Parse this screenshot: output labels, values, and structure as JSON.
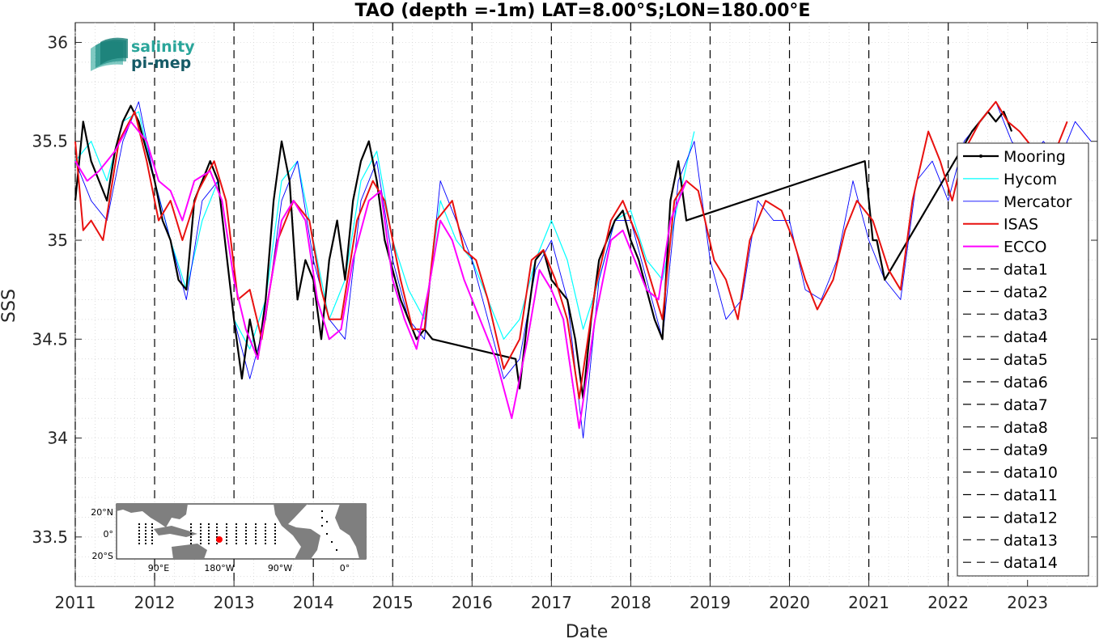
{
  "chart_data": {
    "type": "line",
    "title": "TAO (depth =-1m) LAT=8.00°S;LON=180.00°E",
    "xlabel": "Date",
    "ylabel": "SSS",
    "xlim": [
      2011.0,
      2023.88
    ],
    "ylim": [
      33.25,
      36.1
    ],
    "x_ticks": [
      "2011",
      "2012",
      "2013",
      "2014",
      "2015",
      "2016",
      "2017",
      "2018",
      "2019",
      "2020",
      "2021",
      "2022",
      "2023"
    ],
    "y_ticks": [
      "33.5",
      "34",
      "34.5",
      "35",
      "35.5",
      "36"
    ],
    "y_tick_values": [
      33.5,
      34,
      34.5,
      35,
      35.5,
      36
    ],
    "grid": "on",
    "legend_placement": "right",
    "vertical_dashed_lines_at": [
      2011,
      2012,
      2013,
      2014,
      2015,
      2016,
      2017,
      2018,
      2019,
      2020,
      2021,
      2022
    ],
    "series": [
      {
        "name": "Mooring",
        "color": "#000000",
        "width": 2.2,
        "x": [
          2011.0,
          2011.1,
          2011.2,
          2011.3,
          2011.4,
          2011.5,
          2011.6,
          2011.7,
          2011.8,
          2011.9,
          2012.0,
          2012.1,
          2012.2,
          2012.3,
          2012.4,
          2012.5,
          2012.6,
          2012.7,
          2012.8,
          2012.9,
          2013.0,
          2013.1,
          2013.2,
          2013.3,
          2013.4,
          2013.5,
          2013.6,
          2013.7,
          2013.8,
          2013.9,
          2014.0,
          2014.1,
          2014.2,
          2014.3,
          2014.4,
          2014.5,
          2014.6,
          2014.7,
          2014.8,
          2014.9,
          2015.0,
          2015.1,
          2015.2,
          2015.3,
          2015.4,
          2015.5,
          2016.55,
          2016.6,
          2016.7,
          2016.8,
          2016.9,
          2017.0,
          2017.1,
          2017.2,
          2017.3,
          2017.4,
          2017.5,
          2017.6,
          2017.7,
          2017.8,
          2017.9,
          2018.0,
          2018.1,
          2018.2,
          2018.3,
          2018.4,
          2018.5,
          2018.6,
          2018.7,
          2020.95,
          2021.0,
          2021.05,
          2021.1,
          2021.15,
          2021.2,
          2022.3,
          2022.4,
          2022.5,
          2022.6,
          2022.7,
          2022.8
        ],
        "y": [
          35.2,
          35.6,
          35.4,
          35.3,
          35.2,
          35.45,
          35.6,
          35.68,
          35.6,
          35.45,
          35.3,
          35.1,
          35.0,
          34.8,
          34.75,
          35.2,
          35.3,
          35.4,
          35.3,
          34.95,
          34.6,
          34.3,
          34.6,
          34.4,
          34.7,
          35.2,
          35.5,
          35.3,
          34.7,
          34.9,
          34.8,
          34.5,
          34.9,
          35.1,
          34.8,
          35.2,
          35.4,
          35.5,
          35.3,
          35.0,
          34.85,
          34.7,
          34.6,
          34.5,
          34.55,
          34.5,
          34.4,
          34.25,
          34.6,
          34.9,
          34.95,
          34.8,
          34.75,
          34.7,
          34.5,
          34.2,
          34.6,
          34.9,
          35.0,
          35.1,
          35.15,
          35.0,
          34.9,
          34.75,
          34.6,
          34.5,
          35.2,
          35.4,
          35.1,
          35.4,
          35.2,
          35.0,
          35.0,
          34.9,
          34.8,
          35.55,
          35.6,
          35.65,
          35.6,
          35.65,
          35.55
        ]
      },
      {
        "name": "Hycom",
        "color": "#00ffff",
        "width": 1.2,
        "x": [
          2011.0,
          2011.2,
          2011.4,
          2011.6,
          2011.8,
          2012.0,
          2012.2,
          2012.4,
          2012.6,
          2012.8,
          2013.0,
          2013.2,
          2013.4,
          2013.6,
          2013.8,
          2014.0,
          2014.2,
          2014.4,
          2014.6,
          2014.8,
          2015.0,
          2015.2,
          2015.4,
          2015.6,
          2015.8,
          2016.0,
          2016.2,
          2016.4,
          2016.6,
          2016.8,
          2017.0,
          2017.2,
          2017.4,
          2017.6,
          2017.8,
          2018.0,
          2018.2,
          2018.4,
          2018.6,
          2018.8
        ],
        "y": [
          35.4,
          35.5,
          35.3,
          35.6,
          35.65,
          35.3,
          35.0,
          34.75,
          35.1,
          35.3,
          34.6,
          34.45,
          34.7,
          35.3,
          35.4,
          35.0,
          34.6,
          34.8,
          35.3,
          35.45,
          35.0,
          34.75,
          34.6,
          35.2,
          35.0,
          34.9,
          34.7,
          34.5,
          34.6,
          34.9,
          35.1,
          34.9,
          34.55,
          34.8,
          35.1,
          35.15,
          34.9,
          34.8,
          35.2,
          35.55
        ]
      },
      {
        "name": "Mercator",
        "color": "#0000ff",
        "width": 0.9,
        "x": [
          2011.0,
          2011.2,
          2011.4,
          2011.6,
          2011.8,
          2012.0,
          2012.2,
          2012.4,
          2012.6,
          2012.8,
          2013.0,
          2013.2,
          2013.4,
          2013.6,
          2013.8,
          2014.0,
          2014.2,
          2014.4,
          2014.6,
          2014.8,
          2015.0,
          2015.2,
          2015.4,
          2015.6,
          2015.8,
          2016.0,
          2016.2,
          2016.4,
          2016.6,
          2016.8,
          2017.0,
          2017.2,
          2017.4,
          2017.6,
          2017.8,
          2018.0,
          2018.2,
          2018.4,
          2018.6,
          2018.8,
          2019.0,
          2019.2,
          2019.4,
          2019.6,
          2019.8,
          2020.0,
          2020.2,
          2020.4,
          2020.6,
          2020.8,
          2021.0,
          2021.2,
          2021.4,
          2021.6,
          2021.8,
          2022.0,
          2022.2,
          2022.4,
          2022.6,
          2022.8,
          2023.0,
          2023.2,
          2023.4,
          2023.6,
          2023.8
        ],
        "y": [
          35.4,
          35.2,
          35.1,
          35.5,
          35.7,
          35.3,
          35.0,
          34.7,
          35.2,
          35.3,
          34.6,
          34.3,
          34.6,
          35.2,
          35.4,
          34.9,
          34.6,
          34.5,
          35.2,
          35.4,
          34.9,
          34.6,
          34.5,
          35.3,
          35.1,
          34.9,
          34.6,
          34.3,
          34.4,
          34.85,
          35.0,
          34.7,
          34.0,
          34.8,
          35.1,
          35.1,
          34.8,
          34.5,
          35.3,
          35.5,
          34.9,
          34.6,
          34.7,
          35.2,
          35.1,
          35.1,
          34.75,
          34.7,
          34.9,
          35.3,
          35.0,
          34.8,
          34.7,
          35.3,
          35.4,
          35.2,
          35.5,
          35.6,
          35.7,
          35.5,
          35.4,
          35.5,
          35.4,
          35.6,
          35.5
        ]
      },
      {
        "name": "ISAS",
        "color": "#e8110f",
        "width": 2.0,
        "x": [
          2011.0,
          2011.1,
          2011.2,
          2011.35,
          2011.55,
          2011.75,
          2011.9,
          2012.05,
          2012.2,
          2012.35,
          2012.55,
          2012.75,
          2012.9,
          2013.05,
          2013.2,
          2013.35,
          2013.55,
          2013.75,
          2013.95,
          2014.1,
          2014.2,
          2014.35,
          2014.55,
          2014.75,
          2014.9,
          2015.1,
          2015.25,
          2015.4,
          2015.55,
          2015.75,
          2015.9,
          2016.05,
          2016.2,
          2016.4,
          2016.6,
          2016.75,
          2016.9,
          2017.05,
          2017.2,
          2017.35,
          2017.55,
          2017.75,
          2017.9,
          2018.1,
          2018.25,
          2018.4,
          2018.55,
          2018.7,
          2018.85,
          2019.05,
          2019.2,
          2019.35,
          2019.5,
          2019.7,
          2019.9,
          2020.05,
          2020.2,
          2020.35,
          2020.55,
          2020.7,
          2020.85,
          2021.05,
          2021.25,
          2021.4,
          2021.55,
          2021.75,
          2021.9,
          2022.05,
          2022.2,
          2022.4,
          2022.6,
          2022.75,
          2022.9,
          2023.1,
          2023.3,
          2023.5
        ],
        "y": [
          35.5,
          35.05,
          35.1,
          35.0,
          35.5,
          35.65,
          35.4,
          35.1,
          35.2,
          35.0,
          35.25,
          35.4,
          35.2,
          34.7,
          34.75,
          34.5,
          35.0,
          35.2,
          35.1,
          34.75,
          34.6,
          34.6,
          35.1,
          35.3,
          35.2,
          34.8,
          34.55,
          34.55,
          35.1,
          35.2,
          34.95,
          34.9,
          34.7,
          34.35,
          34.5,
          34.9,
          34.95,
          34.8,
          34.6,
          34.2,
          34.75,
          35.1,
          35.2,
          35.0,
          34.8,
          34.6,
          35.2,
          35.3,
          35.25,
          34.9,
          34.8,
          34.6,
          35.0,
          35.2,
          35.15,
          35.0,
          34.8,
          34.65,
          34.8,
          35.05,
          35.2,
          35.1,
          34.85,
          34.75,
          35.2,
          35.55,
          35.4,
          35.2,
          35.45,
          35.6,
          35.7,
          35.6,
          35.55,
          35.45,
          35.4,
          35.6
        ]
      },
      {
        "name": "ECCO",
        "color": "#ff00ff",
        "width": 2.0,
        "x": [
          2011.0,
          2011.15,
          2011.3,
          2011.5,
          2011.7,
          2011.9,
          2012.05,
          2012.2,
          2012.35,
          2012.5,
          2012.7,
          2012.85,
          2013.0,
          2013.15,
          2013.3,
          2013.45,
          2013.6,
          2013.75,
          2013.9,
          2014.05,
          2014.2,
          2014.35,
          2014.5,
          2014.7,
          2014.85,
          2015.0,
          2015.15,
          2015.3,
          2015.45,
          2015.6,
          2015.75,
          2015.9,
          2016.1,
          2016.3,
          2016.5,
          2016.7,
          2016.85,
          2017.0,
          2017.15,
          2017.35,
          2017.55,
          2017.75,
          2017.9,
          2018.05,
          2018.2,
          2018.35,
          2018.5,
          2018.7
        ],
        "y": [
          35.4,
          35.3,
          35.35,
          35.45,
          35.6,
          35.5,
          35.3,
          35.25,
          35.1,
          35.3,
          35.35,
          35.2,
          34.8,
          34.55,
          34.4,
          34.75,
          35.1,
          35.2,
          35.1,
          34.7,
          34.5,
          34.55,
          34.9,
          35.2,
          35.25,
          34.8,
          34.6,
          34.45,
          34.75,
          35.1,
          35.0,
          34.8,
          34.6,
          34.4,
          34.1,
          34.5,
          34.85,
          34.75,
          34.6,
          34.05,
          34.6,
          35.0,
          35.05,
          34.9,
          34.75,
          34.7,
          35.1,
          35.3
        ]
      }
    ],
    "dashed_entries": [
      "data1",
      "data2",
      "data3",
      "data4",
      "data5",
      "data6",
      "data7",
      "data8",
      "data9",
      "data10",
      "data11",
      "data12",
      "data13",
      "data14"
    ]
  },
  "logo": {
    "line1": "salinity",
    "line2": "pi-mep"
  },
  "inset_map": {
    "lat_labels": [
      "20°N",
      "0°",
      "20°S"
    ],
    "lon_labels": [
      "90°E",
      "180°W",
      "90°W",
      "0°"
    ],
    "land_color": "#7f7f7f",
    "ocean_color": "#ffffff",
    "marker_color": "#ff0000"
  }
}
